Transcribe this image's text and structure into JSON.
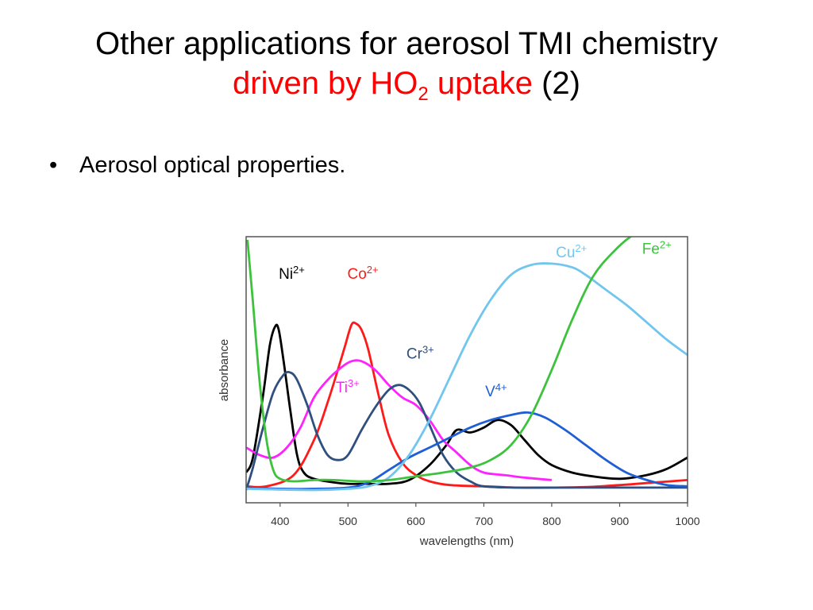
{
  "slide": {
    "title_line1": "Other applications for aerosol TMI chemistry",
    "title_red_part": "driven by HO",
    "title_subscript": "2",
    "title_red_suffix": " uptake",
    "title_tail": " (2)",
    "bullet_marker": "•",
    "bullet_text": "Aerosol optical properties."
  },
  "chart_data": {
    "type": "line",
    "xlabel": "wavelengths (nm)",
    "ylabel": "absorbance",
    "xlim": [
      350,
      1000
    ],
    "ylim": [
      0,
      1
    ],
    "x_ticks": [
      400,
      500,
      600,
      700,
      800,
      900,
      1000
    ],
    "y_ticks_shown": false,
    "grid": false,
    "series": [
      {
        "name": "Ni",
        "superscript": "2+",
        "color": "#000000",
        "label_at": [
          398,
          0.845
        ],
        "points": [
          [
            350,
            0.07
          ],
          [
            360,
            0.13
          ],
          [
            375,
            0.38
          ],
          [
            385,
            0.58
          ],
          [
            393,
            0.655
          ],
          [
            398,
            0.64
          ],
          [
            405,
            0.52
          ],
          [
            415,
            0.32
          ],
          [
            425,
            0.14
          ],
          [
            435,
            0.07
          ],
          [
            450,
            0.045
          ],
          [
            480,
            0.03
          ],
          [
            500,
            0.025
          ],
          [
            530,
            0.025
          ],
          [
            560,
            0.025
          ],
          [
            590,
            0.04
          ],
          [
            620,
            0.1
          ],
          [
            645,
            0.18
          ],
          [
            660,
            0.24
          ],
          [
            680,
            0.23
          ],
          [
            700,
            0.25
          ],
          [
            720,
            0.28
          ],
          [
            740,
            0.26
          ],
          [
            760,
            0.2
          ],
          [
            780,
            0.14
          ],
          [
            800,
            0.1
          ],
          [
            830,
            0.07
          ],
          [
            860,
            0.055
          ],
          [
            900,
            0.045
          ],
          [
            940,
            0.06
          ],
          [
            970,
            0.085
          ],
          [
            1000,
            0.13
          ]
        ]
      },
      {
        "name": "Co",
        "superscript": "2+",
        "color": "#ff1a1a",
        "label_at": [
          499,
          0.845
        ],
        "points": [
          [
            350,
            0.015
          ],
          [
            380,
            0.015
          ],
          [
            420,
            0.06
          ],
          [
            450,
            0.2
          ],
          [
            470,
            0.35
          ],
          [
            485,
            0.48
          ],
          [
            495,
            0.57
          ],
          [
            505,
            0.66
          ],
          [
            512,
            0.665
          ],
          [
            520,
            0.64
          ],
          [
            530,
            0.56
          ],
          [
            545,
            0.38
          ],
          [
            560,
            0.22
          ],
          [
            580,
            0.11
          ],
          [
            600,
            0.06
          ],
          [
            620,
            0.035
          ],
          [
            650,
            0.02
          ],
          [
            700,
            0.015
          ],
          [
            750,
            0.01
          ],
          [
            800,
            0.01
          ],
          [
            850,
            0.012
          ],
          [
            900,
            0.02
          ],
          [
            950,
            0.03
          ],
          [
            1000,
            0.04
          ]
        ]
      },
      {
        "name": "Ti",
        "superscript": "3+",
        "color": "#ff22ff",
        "label_at": [
          482,
          0.39
        ],
        "points": [
          [
            350,
            0.17
          ],
          [
            370,
            0.14
          ],
          [
            390,
            0.13
          ],
          [
            410,
            0.17
          ],
          [
            430,
            0.25
          ],
          [
            450,
            0.37
          ],
          [
            470,
            0.44
          ],
          [
            490,
            0.49
          ],
          [
            505,
            0.515
          ],
          [
            520,
            0.515
          ],
          [
            540,
            0.48
          ],
          [
            560,
            0.42
          ],
          [
            580,
            0.37
          ],
          [
            600,
            0.34
          ],
          [
            620,
            0.28
          ],
          [
            640,
            0.2
          ],
          [
            660,
            0.15
          ],
          [
            680,
            0.1
          ],
          [
            700,
            0.07
          ],
          [
            730,
            0.06
          ],
          [
            760,
            0.05
          ],
          [
            800,
            0.04
          ]
        ]
      },
      {
        "name": "Cr",
        "superscript": "3+",
        "color": "#2f4f7f",
        "label_at": [
          586,
          0.525
        ],
        "points": [
          [
            350,
            0.0
          ],
          [
            360,
            0.09
          ],
          [
            375,
            0.25
          ],
          [
            390,
            0.39
          ],
          [
            405,
            0.46
          ],
          [
            415,
            0.47
          ],
          [
            425,
            0.44
          ],
          [
            440,
            0.34
          ],
          [
            455,
            0.22
          ],
          [
            470,
            0.14
          ],
          [
            485,
            0.12
          ],
          [
            500,
            0.14
          ],
          [
            520,
            0.24
          ],
          [
            540,
            0.33
          ],
          [
            560,
            0.4
          ],
          [
            575,
            0.42
          ],
          [
            590,
            0.4
          ],
          [
            605,
            0.35
          ],
          [
            620,
            0.26
          ],
          [
            640,
            0.14
          ],
          [
            660,
            0.07
          ],
          [
            680,
            0.035
          ],
          [
            700,
            0.015
          ],
          [
            750,
            0.01
          ],
          [
            800,
            0.01
          ],
          [
            900,
            0.01
          ],
          [
            1000,
            0.01
          ]
        ]
      },
      {
        "name": "V",
        "superscript": "4+",
        "color": "#1f5fd6",
        "label_at": [
          702,
          0.375
        ],
        "points": [
          [
            350,
            0.01
          ],
          [
            400,
            0.005
          ],
          [
            450,
            0.005
          ],
          [
            500,
            0.01
          ],
          [
            530,
            0.03
          ],
          [
            560,
            0.08
          ],
          [
            590,
            0.13
          ],
          [
            620,
            0.17
          ],
          [
            650,
            0.21
          ],
          [
            680,
            0.25
          ],
          [
            710,
            0.28
          ],
          [
            740,
            0.3
          ],
          [
            765,
            0.31
          ],
          [
            790,
            0.29
          ],
          [
            820,
            0.24
          ],
          [
            850,
            0.18
          ],
          [
            880,
            0.12
          ],
          [
            910,
            0.07
          ],
          [
            940,
            0.04
          ],
          [
            970,
            0.02
          ],
          [
            1000,
            0.015
          ]
        ]
      },
      {
        "name": "Cu",
        "superscript": "2+",
        "color": "#70c6ef",
        "label_at": [
          806,
          0.93
        ],
        "points": [
          [
            350,
            0.005
          ],
          [
            450,
            0.0
          ],
          [
            500,
            0.005
          ],
          [
            530,
            0.015
          ],
          [
            560,
            0.05
          ],
          [
            590,
            0.14
          ],
          [
            620,
            0.28
          ],
          [
            650,
            0.45
          ],
          [
            680,
            0.62
          ],
          [
            710,
            0.76
          ],
          [
            740,
            0.86
          ],
          [
            770,
            0.9
          ],
          [
            800,
            0.905
          ],
          [
            830,
            0.89
          ],
          [
            850,
            0.86
          ],
          [
            880,
            0.8
          ],
          [
            910,
            0.74
          ],
          [
            940,
            0.67
          ],
          [
            970,
            0.6
          ],
          [
            1000,
            0.54
          ]
        ]
      },
      {
        "name": "Fe",
        "superscript": "2+",
        "color": "#3dc23d",
        "label_at": [
          933,
          0.945
        ],
        "points": [
          [
            352,
            1.0
          ],
          [
            360,
            0.75
          ],
          [
            370,
            0.43
          ],
          [
            380,
            0.2
          ],
          [
            390,
            0.08
          ],
          [
            400,
            0.045
          ],
          [
            420,
            0.035
          ],
          [
            450,
            0.04
          ],
          [
            480,
            0.04
          ],
          [
            520,
            0.035
          ],
          [
            560,
            0.04
          ],
          [
            600,
            0.055
          ],
          [
            640,
            0.07
          ],
          [
            680,
            0.09
          ],
          [
            710,
            0.12
          ],
          [
            740,
            0.18
          ],
          [
            770,
            0.3
          ],
          [
            800,
            0.48
          ],
          [
            830,
            0.68
          ],
          [
            860,
            0.85
          ],
          [
            890,
            0.95
          ],
          [
            920,
            1.02
          ],
          [
            945,
            1.045
          ],
          [
            970,
            1.04
          ],
          [
            1000,
            1.02
          ]
        ]
      }
    ]
  }
}
